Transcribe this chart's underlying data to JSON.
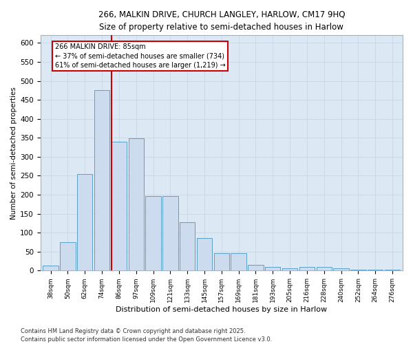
{
  "title_line1": "266, MALKIN DRIVE, CHURCH LANGLEY, HARLOW, CM17 9HQ",
  "title_line2": "Size of property relative to semi-detached houses in Harlow",
  "xlabel": "Distribution of semi-detached houses by size in Harlow",
  "ylabel": "Number of semi-detached properties",
  "categories": [
    "38sqm",
    "50sqm",
    "62sqm",
    "74sqm",
    "86sqm",
    "97sqm",
    "109sqm",
    "121sqm",
    "133sqm",
    "145sqm",
    "157sqm",
    "169sqm",
    "181sqm",
    "193sqm",
    "205sqm",
    "216sqm",
    "228sqm",
    "240sqm",
    "252sqm",
    "264sqm",
    "276sqm"
  ],
  "values": [
    13,
    75,
    255,
    475,
    340,
    348,
    196,
    196,
    127,
    85,
    46,
    46,
    15,
    9,
    6,
    9,
    10,
    6,
    2,
    2,
    2
  ],
  "bar_color": "#ccdcee",
  "bar_edge_color": "#5a9fc8",
  "grid_color": "#c8d8e8",
  "bg_color": "#dce8f4",
  "annotation_label": "266 MALKIN DRIVE: 85sqm",
  "annotation_line1": "← 37% of semi-detached houses are smaller (734)",
  "annotation_line2": "61% of semi-detached houses are larger (1,219) →",
  "vline_color": "#cc0000",
  "annotation_box_color": "#cc0000",
  "vline_x_index": 4,
  "ylim": [
    0,
    620
  ],
  "yticks": [
    0,
    50,
    100,
    150,
    200,
    250,
    300,
    350,
    400,
    450,
    500,
    550,
    600
  ],
  "footer_line1": "Contains HM Land Registry data © Crown copyright and database right 2025.",
  "footer_line2": "Contains public sector information licensed under the Open Government Licence v3.0."
}
